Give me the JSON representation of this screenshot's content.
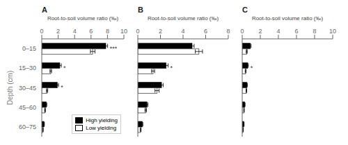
{
  "chart_data": [
    {
      "type": "bar",
      "orientation": "horizontal",
      "title": "A",
      "x_label": "Root-to-soil volume ratio (‰)",
      "y_label": "Depth (cm)",
      "categories": [
        "0–15",
        "15–30",
        "30–45",
        "45–60",
        "60–75"
      ],
      "series": [
        {
          "name": "High yielding",
          "color": "#000000",
          "values": [
            7.8,
            2.2,
            1.9,
            0.55,
            0.28
          ],
          "error": [
            0.22,
            0.18,
            0.15,
            0.07,
            0.04
          ]
        },
        {
          "name": "Low yielding",
          "color": "#ffffff",
          "values": [
            6.2,
            1.1,
            0.65,
            0.4,
            0.15
          ],
          "error": [
            0.28,
            0.1,
            0.08,
            0.06,
            0.03
          ]
        }
      ],
      "xlim": [
        0,
        10
      ],
      "xticks": [
        0,
        2,
        4,
        6,
        8,
        10
      ],
      "annotations": [
        {
          "category": "0–15",
          "text": "***"
        },
        {
          "category": "15–30",
          "text": "*"
        },
        {
          "category": "30–45",
          "text": "*"
        }
      ],
      "legend": "lower right",
      "grid": false
    },
    {
      "type": "bar",
      "orientation": "horizontal",
      "title": "B",
      "x_label": "Root-to-soil volume ratio (‰)",
      "categories": [
        "0–15",
        "15–30",
        "30–45",
        "45–60",
        "60–75"
      ],
      "series": [
        {
          "name": "High yielding",
          "color": "#000000",
          "values": [
            4.8,
            2.5,
            2.1,
            0.82,
            0.4
          ],
          "error": [
            0.18,
            0.18,
            0.15,
            0.08,
            0.05
          ]
        },
        {
          "name": "Low yielding",
          "color": "#ffffff",
          "values": [
            5.4,
            1.35,
            1.7,
            0.7,
            0.25
          ],
          "error": [
            0.32,
            0.14,
            0.18,
            0.07,
            0.04
          ]
        }
      ],
      "xlim": [
        0,
        8
      ],
      "xticks": [
        0,
        2,
        4,
        6,
        8
      ],
      "annotations": [
        {
          "category": "15–30",
          "text": "*"
        }
      ],
      "tick_labels": "x",
      "grid": false
    },
    {
      "type": "bar",
      "orientation": "horizontal",
      "title": "C",
      "x_label": "Root-to-soil volume ratio (‰)",
      "categories": [
        "0–15",
        "15–30",
        "30–45",
        "45–60",
        "60–75"
      ],
      "series": [
        {
          "name": "High yielding",
          "color": "#000000",
          "values": [
            0.9,
            0.62,
            0.52,
            0.28,
            0.18
          ],
          "error": [
            0.08,
            0.06,
            0.05,
            0.04,
            0.03
          ]
        },
        {
          "name": "Low yielding",
          "color": "#ffffff",
          "values": [
            0.5,
            0.38,
            0.46,
            0.2,
            0.1
          ],
          "error": [
            0.06,
            0.05,
            0.04,
            0.03,
            0.02
          ]
        }
      ],
      "xlim": [
        0,
        10
      ],
      "xticks": [
        0,
        2,
        4,
        6,
        8,
        10
      ],
      "annotations": [
        {
          "category": "15–30",
          "text": "*"
        }
      ],
      "tick_labels": "x",
      "grid": false
    }
  ]
}
